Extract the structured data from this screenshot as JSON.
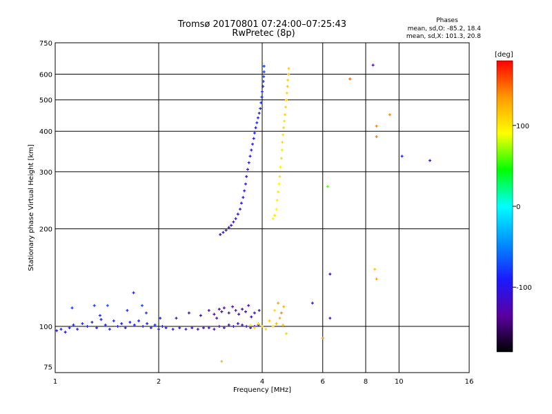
{
  "chart_data": {
    "type": "scatter",
    "title": "Tromsø 20170801 07:24:00–07:25:43",
    "subtitle": "RwPretec (8p)",
    "stats": {
      "heading": "Phases",
      "line1": "mean, sd,O: -85.2, 18.4",
      "line2": "mean, sd,X: 101.3, 20.8"
    },
    "xlabel": "Frequency [MHz]",
    "ylabel": "Stationary phase Virtual Height [km]",
    "x_scale": "log",
    "y_scale": "log",
    "xlim": [
      1,
      16
    ],
    "ylim": [
      72,
      750
    ],
    "x_ticks": [
      1,
      2,
      4,
      6,
      8,
      10,
      16
    ],
    "x_tick_labels": [
      "1",
      "2",
      "4",
      "6",
      "8",
      "10",
      "16"
    ],
    "y_ticks": [
      75,
      100,
      200,
      300,
      400,
      500,
      600,
      750
    ],
    "y_tick_labels": [
      "75",
      "100",
      "200",
      "300",
      "400",
      "500",
      "600",
      "750"
    ],
    "grid": true,
    "colorbar": {
      "label": "[deg]",
      "range": [
        -180,
        180
      ],
      "ticks": [
        100,
        0,
        -100
      ],
      "tick_labels": [
        "100",
        "0",
        "-100"
      ],
      "colors": [
        "#000000",
        "#5a00a0",
        "#1a1aff",
        "#0090ff",
        "#00ffff",
        "#00ff00",
        "#ffff00",
        "#ff9900",
        "#ff0000"
      ]
    },
    "series": [
      {
        "trace": "low",
        "points": [
          [
            1.01,
            97,
            -95
          ],
          [
            1.04,
            98,
            -90
          ],
          [
            1.07,
            96,
            -100
          ],
          [
            1.1,
            99,
            -92
          ],
          [
            1.13,
            101,
            -88
          ],
          [
            1.16,
            98,
            -96
          ],
          [
            1.2,
            102,
            -85
          ],
          [
            1.24,
            100,
            -93
          ],
          [
            1.28,
            103,
            -98
          ],
          [
            1.32,
            99,
            -90
          ],
          [
            1.36,
            105,
            -87
          ],
          [
            1.4,
            101,
            -95
          ],
          [
            1.44,
            98,
            -91
          ],
          [
            1.48,
            104,
            -86
          ],
          [
            1.52,
            100,
            -97
          ],
          [
            1.56,
            102,
            -89
          ],
          [
            1.6,
            99,
            -94
          ],
          [
            1.65,
            103,
            -88
          ],
          [
            1.7,
            101,
            -92
          ],
          [
            1.75,
            104,
            -90
          ],
          [
            1.8,
            100,
            -96
          ],
          [
            1.85,
            102,
            -87
          ],
          [
            1.9,
            99,
            -93
          ],
          [
            1.95,
            101,
            -91
          ],
          [
            2.0,
            98,
            -95
          ],
          [
            2.05,
            100,
            -97
          ],
          [
            2.1,
            99,
            -100
          ],
          [
            2.2,
            98,
            -105
          ],
          [
            2.3,
            99,
            -110
          ],
          [
            2.4,
            98,
            -108
          ],
          [
            2.5,
            99,
            -112
          ],
          [
            2.6,
            98,
            -115
          ],
          [
            2.7,
            99,
            -118
          ],
          [
            2.8,
            99,
            -120
          ],
          [
            2.9,
            98,
            -122
          ],
          [
            3.0,
            100,
            -125
          ],
          [
            3.1,
            99,
            -120
          ],
          [
            3.2,
            101,
            -118
          ],
          [
            3.3,
            100,
            -115
          ],
          [
            3.4,
            102,
            -110
          ],
          [
            3.5,
            101,
            -108
          ],
          [
            3.6,
            100,
            -112
          ],
          [
            3.7,
            99,
            -115
          ],
          [
            3.8,
            100,
            -110
          ],
          [
            3.9,
            101,
            -105
          ],
          [
            4.0,
            100,
            -100
          ]
        ]
      },
      {
        "trace": "low",
        "points": [
          [
            1.12,
            114,
            -80
          ],
          [
            1.3,
            116,
            -78
          ],
          [
            1.35,
            108,
            -82
          ],
          [
            1.42,
            116,
            -70
          ],
          [
            1.62,
            112,
            -84
          ],
          [
            1.69,
            127,
            -92
          ],
          [
            1.79,
            116,
            -76
          ],
          [
            1.84,
            110,
            -80
          ],
          [
            2.02,
            106,
            -88
          ],
          [
            2.25,
            106,
            -110
          ],
          [
            2.45,
            110,
            -120
          ],
          [
            2.65,
            108,
            -118
          ],
          [
            2.8,
            112,
            -122
          ],
          [
            2.9,
            109,
            -130
          ],
          [
            2.95,
            106,
            -125
          ],
          [
            3.0,
            113,
            -135
          ],
          [
            3.05,
            111,
            -128
          ],
          [
            3.1,
            114,
            -132
          ],
          [
            3.2,
            110,
            -125
          ],
          [
            3.28,
            115,
            -130
          ],
          [
            3.35,
            112,
            -120
          ],
          [
            3.42,
            109,
            -128
          ],
          [
            3.5,
            113,
            -125
          ],
          [
            3.58,
            111,
            -118
          ],
          [
            3.65,
            116,
            -122
          ],
          [
            3.72,
            107,
            -115
          ],
          [
            3.8,
            110,
            -118
          ],
          [
            3.92,
            112,
            -110
          ]
        ]
      },
      {
        "trace": "O",
        "points": [
          [
            3.02,
            192,
            -120
          ],
          [
            3.08,
            195,
            -115
          ],
          [
            3.14,
            198,
            -118
          ],
          [
            3.2,
            202,
            -110
          ],
          [
            3.25,
            205,
            -112
          ],
          [
            3.3,
            210,
            -105
          ],
          [
            3.35,
            215,
            -108
          ],
          [
            3.4,
            222,
            -110
          ],
          [
            3.45,
            230,
            -105
          ],
          [
            3.48,
            240,
            -100
          ],
          [
            3.52,
            250,
            -108
          ],
          [
            3.55,
            262,
            -102
          ],
          [
            3.58,
            275,
            -105
          ],
          [
            3.6,
            290,
            -98
          ],
          [
            3.63,
            305,
            -100
          ],
          [
            3.66,
            320,
            -95
          ],
          [
            3.69,
            335,
            -98
          ],
          [
            3.72,
            350,
            -92
          ],
          [
            3.75,
            365,
            -95
          ],
          [
            3.78,
            380,
            -90
          ],
          [
            3.8,
            395,
            -88
          ],
          [
            3.83,
            410,
            -92
          ],
          [
            3.86,
            425,
            -86
          ],
          [
            3.89,
            440,
            -90
          ],
          [
            3.92,
            455,
            -85
          ],
          [
            3.95,
            470,
            -88
          ],
          [
            3.97,
            490,
            -84
          ],
          [
            3.99,
            510,
            -80
          ],
          [
            4.0,
            530,
            -82
          ],
          [
            4.02,
            550,
            -78
          ],
          [
            4.03,
            570,
            -80
          ],
          [
            4.04,
            590,
            -76
          ],
          [
            4.05,
            610,
            -80
          ],
          [
            4.05,
            635,
            -75
          ]
        ]
      },
      {
        "trace": "X",
        "points": [
          [
            4.3,
            215,
            95
          ],
          [
            4.35,
            220,
            100
          ],
          [
            4.4,
            230,
            92
          ],
          [
            4.42,
            245,
            98
          ],
          [
            4.45,
            260,
            100
          ],
          [
            4.48,
            275,
            96
          ],
          [
            4.5,
            290,
            102
          ],
          [
            4.52,
            310,
            98
          ],
          [
            4.55,
            330,
            104
          ],
          [
            4.57,
            350,
            100
          ],
          [
            4.58,
            370,
            106
          ],
          [
            4.6,
            390,
            102
          ],
          [
            4.62,
            410,
            108
          ],
          [
            4.64,
            430,
            104
          ],
          [
            4.66,
            450,
            110
          ],
          [
            4.68,
            475,
            106
          ],
          [
            4.7,
            500,
            112
          ],
          [
            4.72,
            525,
            108
          ],
          [
            4.74,
            550,
            115
          ],
          [
            4.75,
            575,
            110
          ],
          [
            4.77,
            600,
            118
          ],
          [
            4.78,
            625,
            112
          ]
        ]
      },
      {
        "trace": "X-low",
        "points": [
          [
            3.7,
            101,
            100
          ],
          [
            3.8,
            99,
            110
          ],
          [
            3.9,
            102,
            105
          ],
          [
            4.0,
            100,
            112
          ],
          [
            4.1,
            98,
            108
          ],
          [
            4.2,
            104,
            115
          ],
          [
            4.3,
            100,
            110
          ],
          [
            4.4,
            102,
            120
          ],
          [
            4.5,
            106,
            125
          ],
          [
            4.6,
            101,
            118
          ],
          [
            4.35,
            112,
            105
          ],
          [
            4.45,
            118,
            130
          ],
          [
            4.55,
            110,
            140
          ],
          [
            4.62,
            115,
            125
          ]
        ]
      },
      {
        "trace": "noise",
        "points": [
          [
            6.2,
            270,
            60
          ],
          [
            6.3,
            145,
            -110
          ],
          [
            6.3,
            106,
            -105
          ],
          [
            7.2,
            580,
            150
          ],
          [
            8.4,
            640,
            -120
          ],
          [
            8.6,
            415,
            140
          ],
          [
            8.6,
            385,
            145
          ],
          [
            8.5,
            150,
            115
          ],
          [
            8.6,
            140,
            130
          ],
          [
            9.4,
            450,
            140
          ],
          [
            10.2,
            335,
            -90
          ],
          [
            12.3,
            325,
            -105
          ],
          [
            5.6,
            118,
            -110
          ],
          [
            6.0,
            92,
            140
          ],
          [
            3.05,
            78,
            120
          ],
          [
            4.7,
            95,
            110
          ]
        ]
      }
    ]
  }
}
